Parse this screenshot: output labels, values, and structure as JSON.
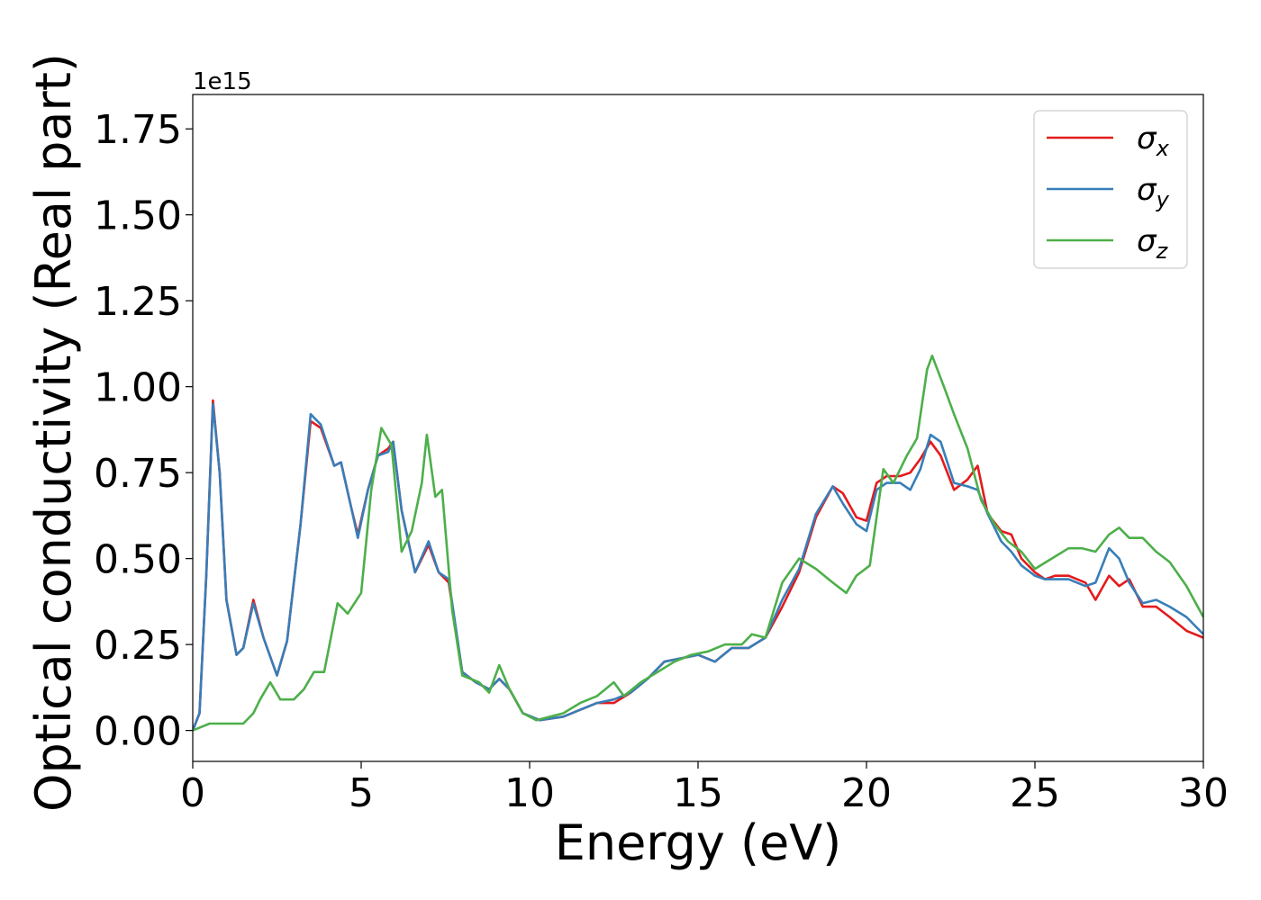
{
  "chart_data": {
    "type": "line",
    "title": "",
    "xlabel": "Energy (eV)",
    "ylabel": "Optical conductivity (Real part)",
    "y_offset_label": "1e15",
    "xlim": [
      0,
      30
    ],
    "ylim": [
      -0.09,
      1.85
    ],
    "x_ticks": [
      0,
      5,
      10,
      15,
      20,
      25,
      30
    ],
    "x_tick_labels": [
      "0",
      "5",
      "10",
      "15",
      "20",
      "25",
      "30"
    ],
    "y_ticks": [
      0.0,
      0.25,
      0.5,
      0.75,
      1.0,
      1.25,
      1.5,
      1.75
    ],
    "y_tick_labels": [
      "0.00",
      "0.25",
      "0.50",
      "0.75",
      "1.00",
      "1.25",
      "1.50",
      "1.75"
    ],
    "grid": false,
    "legend_position": "top-right",
    "series": [
      {
        "name": "σx",
        "symbol": "σ",
        "subscript": "x",
        "color": "#e41a1c",
        "points": [
          [
            0,
            0.0
          ],
          [
            0.2,
            0.05
          ],
          [
            0.4,
            0.45
          ],
          [
            0.6,
            0.96
          ],
          [
            0.8,
            0.75
          ],
          [
            1.0,
            0.38
          ],
          [
            1.3,
            0.22
          ],
          [
            1.5,
            0.24
          ],
          [
            1.8,
            0.38
          ],
          [
            2.1,
            0.27
          ],
          [
            2.5,
            0.16
          ],
          [
            2.8,
            0.26
          ],
          [
            3.2,
            0.6
          ],
          [
            3.5,
            0.9
          ],
          [
            3.8,
            0.88
          ],
          [
            4.2,
            0.77
          ],
          [
            4.4,
            0.78
          ],
          [
            4.7,
            0.65
          ],
          [
            4.9,
            0.57
          ],
          [
            5.2,
            0.7
          ],
          [
            5.5,
            0.8
          ],
          [
            5.8,
            0.82
          ],
          [
            5.95,
            0.84
          ],
          [
            6.2,
            0.64
          ],
          [
            6.6,
            0.46
          ],
          [
            7.0,
            0.54
          ],
          [
            7.3,
            0.46
          ],
          [
            7.6,
            0.43
          ],
          [
            8.0,
            0.17
          ],
          [
            8.4,
            0.14
          ],
          [
            8.8,
            0.12
          ],
          [
            9.1,
            0.15
          ],
          [
            9.4,
            0.12
          ],
          [
            9.8,
            0.05
          ],
          [
            10.3,
            0.03
          ],
          [
            11.0,
            0.04
          ],
          [
            12.0,
            0.08
          ],
          [
            12.5,
            0.08
          ],
          [
            13.0,
            0.11
          ],
          [
            13.5,
            0.15
          ],
          [
            14.0,
            0.2
          ],
          [
            14.5,
            0.21
          ],
          [
            15.0,
            0.22
          ],
          [
            15.5,
            0.2
          ],
          [
            16.0,
            0.24
          ],
          [
            16.5,
            0.24
          ],
          [
            17.0,
            0.27
          ],
          [
            17.5,
            0.36
          ],
          [
            18.0,
            0.46
          ],
          [
            18.5,
            0.62
          ],
          [
            19.0,
            0.71
          ],
          [
            19.3,
            0.69
          ],
          [
            19.7,
            0.62
          ],
          [
            20.0,
            0.61
          ],
          [
            20.3,
            0.72
          ],
          [
            20.6,
            0.74
          ],
          [
            21.0,
            0.74
          ],
          [
            21.3,
            0.75
          ],
          [
            21.6,
            0.79
          ],
          [
            21.9,
            0.84
          ],
          [
            22.2,
            0.8
          ],
          [
            22.6,
            0.7
          ],
          [
            23.0,
            0.73
          ],
          [
            23.3,
            0.77
          ],
          [
            23.6,
            0.63
          ],
          [
            24.0,
            0.58
          ],
          [
            24.3,
            0.57
          ],
          [
            24.6,
            0.5
          ],
          [
            25.0,
            0.46
          ],
          [
            25.3,
            0.44
          ],
          [
            25.6,
            0.45
          ],
          [
            26.0,
            0.45
          ],
          [
            26.5,
            0.43
          ],
          [
            26.8,
            0.38
          ],
          [
            27.2,
            0.45
          ],
          [
            27.5,
            0.42
          ],
          [
            27.8,
            0.44
          ],
          [
            28.2,
            0.36
          ],
          [
            28.6,
            0.36
          ],
          [
            29.0,
            0.33
          ],
          [
            29.5,
            0.29
          ],
          [
            30.0,
            0.27
          ]
        ]
      },
      {
        "name": "σy",
        "symbol": "σ",
        "subscript": "y",
        "color": "#377eb8",
        "points": [
          [
            0,
            0.0
          ],
          [
            0.2,
            0.05
          ],
          [
            0.4,
            0.45
          ],
          [
            0.6,
            0.95
          ],
          [
            0.8,
            0.75
          ],
          [
            1.0,
            0.38
          ],
          [
            1.3,
            0.22
          ],
          [
            1.5,
            0.24
          ],
          [
            1.8,
            0.37
          ],
          [
            2.1,
            0.27
          ],
          [
            2.5,
            0.16
          ],
          [
            2.8,
            0.26
          ],
          [
            3.2,
            0.6
          ],
          [
            3.5,
            0.92
          ],
          [
            3.8,
            0.89
          ],
          [
            4.2,
            0.77
          ],
          [
            4.4,
            0.78
          ],
          [
            4.7,
            0.65
          ],
          [
            4.9,
            0.56
          ],
          [
            5.2,
            0.7
          ],
          [
            5.5,
            0.8
          ],
          [
            5.8,
            0.81
          ],
          [
            5.95,
            0.84
          ],
          [
            6.2,
            0.64
          ],
          [
            6.6,
            0.46
          ],
          [
            7.0,
            0.55
          ],
          [
            7.3,
            0.46
          ],
          [
            7.6,
            0.44
          ],
          [
            8.0,
            0.17
          ],
          [
            8.4,
            0.14
          ],
          [
            8.8,
            0.12
          ],
          [
            9.1,
            0.15
          ],
          [
            9.4,
            0.12
          ],
          [
            9.8,
            0.05
          ],
          [
            10.3,
            0.03
          ],
          [
            11.0,
            0.04
          ],
          [
            12.0,
            0.08
          ],
          [
            12.5,
            0.09
          ],
          [
            13.0,
            0.11
          ],
          [
            13.5,
            0.15
          ],
          [
            14.0,
            0.2
          ],
          [
            14.5,
            0.21
          ],
          [
            15.0,
            0.22
          ],
          [
            15.5,
            0.2
          ],
          [
            16.0,
            0.24
          ],
          [
            16.5,
            0.24
          ],
          [
            17.0,
            0.27
          ],
          [
            17.5,
            0.38
          ],
          [
            18.0,
            0.47
          ],
          [
            18.5,
            0.63
          ],
          [
            19.0,
            0.71
          ],
          [
            19.3,
            0.66
          ],
          [
            19.7,
            0.6
          ],
          [
            20.0,
            0.58
          ],
          [
            20.3,
            0.7
          ],
          [
            20.6,
            0.72
          ],
          [
            21.0,
            0.72
          ],
          [
            21.3,
            0.7
          ],
          [
            21.6,
            0.76
          ],
          [
            21.9,
            0.86
          ],
          [
            22.2,
            0.84
          ],
          [
            22.6,
            0.72
          ],
          [
            23.0,
            0.71
          ],
          [
            23.3,
            0.7
          ],
          [
            23.6,
            0.63
          ],
          [
            24.0,
            0.55
          ],
          [
            24.3,
            0.52
          ],
          [
            24.6,
            0.48
          ],
          [
            25.0,
            0.45
          ],
          [
            25.3,
            0.44
          ],
          [
            25.6,
            0.44
          ],
          [
            26.0,
            0.44
          ],
          [
            26.5,
            0.42
          ],
          [
            26.8,
            0.43
          ],
          [
            27.2,
            0.53
          ],
          [
            27.5,
            0.5
          ],
          [
            27.8,
            0.43
          ],
          [
            28.2,
            0.37
          ],
          [
            28.6,
            0.38
          ],
          [
            29.0,
            0.36
          ],
          [
            29.5,
            0.33
          ],
          [
            30.0,
            0.28
          ]
        ]
      },
      {
        "name": "σz",
        "symbol": "σ",
        "subscript": "z",
        "color": "#4daf4a",
        "points": [
          [
            0,
            0.0
          ],
          [
            0.5,
            0.02
          ],
          [
            1.0,
            0.02
          ],
          [
            1.5,
            0.02
          ],
          [
            1.8,
            0.05
          ],
          [
            2.0,
            0.09
          ],
          [
            2.3,
            0.14
          ],
          [
            2.6,
            0.09
          ],
          [
            3.0,
            0.09
          ],
          [
            3.3,
            0.12
          ],
          [
            3.6,
            0.17
          ],
          [
            3.9,
            0.17
          ],
          [
            4.3,
            0.37
          ],
          [
            4.6,
            0.34
          ],
          [
            5.0,
            0.4
          ],
          [
            5.3,
            0.7
          ],
          [
            5.6,
            0.88
          ],
          [
            5.9,
            0.83
          ],
          [
            6.2,
            0.52
          ],
          [
            6.5,
            0.58
          ],
          [
            6.8,
            0.72
          ],
          [
            6.95,
            0.86
          ],
          [
            7.2,
            0.68
          ],
          [
            7.4,
            0.7
          ],
          [
            7.7,
            0.35
          ],
          [
            8.0,
            0.16
          ],
          [
            8.5,
            0.14
          ],
          [
            8.8,
            0.11
          ],
          [
            9.1,
            0.19
          ],
          [
            9.4,
            0.12
          ],
          [
            9.8,
            0.05
          ],
          [
            10.2,
            0.03
          ],
          [
            11.0,
            0.05
          ],
          [
            11.5,
            0.08
          ],
          [
            12.0,
            0.1
          ],
          [
            12.5,
            0.14
          ],
          [
            12.8,
            0.1
          ],
          [
            13.3,
            0.14
          ],
          [
            13.8,
            0.17
          ],
          [
            14.3,
            0.2
          ],
          [
            14.8,
            0.22
          ],
          [
            15.3,
            0.23
          ],
          [
            15.8,
            0.25
          ],
          [
            16.3,
            0.25
          ],
          [
            16.6,
            0.28
          ],
          [
            17.0,
            0.27
          ],
          [
            17.5,
            0.43
          ],
          [
            18.0,
            0.5
          ],
          [
            18.5,
            0.47
          ],
          [
            19.0,
            0.43
          ],
          [
            19.4,
            0.4
          ],
          [
            19.7,
            0.45
          ],
          [
            20.1,
            0.48
          ],
          [
            20.5,
            0.76
          ],
          [
            20.8,
            0.72
          ],
          [
            21.2,
            0.8
          ],
          [
            21.5,
            0.85
          ],
          [
            21.8,
            1.05
          ],
          [
            21.95,
            1.09
          ],
          [
            22.3,
            1.0
          ],
          [
            22.6,
            0.92
          ],
          [
            23.0,
            0.82
          ],
          [
            23.4,
            0.67
          ],
          [
            23.8,
            0.6
          ],
          [
            24.2,
            0.55
          ],
          [
            24.6,
            0.52
          ],
          [
            25.0,
            0.47
          ],
          [
            25.5,
            0.5
          ],
          [
            26.0,
            0.53
          ],
          [
            26.4,
            0.53
          ],
          [
            26.8,
            0.52
          ],
          [
            27.2,
            0.57
          ],
          [
            27.5,
            0.59
          ],
          [
            27.8,
            0.56
          ],
          [
            28.2,
            0.56
          ],
          [
            28.6,
            0.52
          ],
          [
            29.0,
            0.49
          ],
          [
            29.5,
            0.42
          ],
          [
            30.0,
            0.33
          ]
        ]
      }
    ]
  }
}
